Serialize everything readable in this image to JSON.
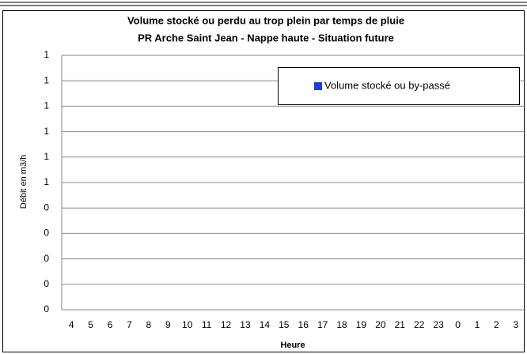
{
  "chart_data": {
    "type": "bar",
    "title": "Volume stocké ou perdu au trop plein par temps de pluie",
    "subtitle": "PR Arche Saint Jean - Nappe haute - Situation future",
    "y_label": "Débit en m3/h",
    "x_label": "Heure",
    "categories": [
      "4",
      "5",
      "6",
      "7",
      "8",
      "9",
      "10",
      "11",
      "12",
      "13",
      "14",
      "15",
      "16",
      "17",
      "18",
      "19",
      "20",
      "21",
      "22",
      "23",
      "0",
      "1",
      "2",
      "3"
    ],
    "series": [
      {
        "name": "Volume stocké ou by-passé",
        "color": "#1f3fd1",
        "values": [
          null,
          null,
          null,
          null,
          null,
          null,
          null,
          null,
          null,
          null,
          null,
          null,
          null,
          null,
          null,
          null,
          null,
          null,
          null,
          null,
          null,
          null,
          null,
          null
        ]
      }
    ],
    "ylim": [
      0,
      1
    ],
    "yticks": [
      0,
      {
        "value": 0.1,
        "label": "0"
      },
      {
        "value": 0.2,
        "label": "0"
      },
      {
        "value": 0.3,
        "label": "0"
      },
      {
        "value": 0.4,
        "label": "0"
      },
      {
        "value": 0.5,
        "label": "1"
      },
      {
        "value": 0.6,
        "label": "1"
      },
      {
        "value": 0.7,
        "label": "1"
      },
      {
        "value": 0.8,
        "label": "1"
      },
      {
        "value": 0.9,
        "label": "1"
      },
      1
    ],
    "grid": true,
    "legend": "upper right"
  }
}
